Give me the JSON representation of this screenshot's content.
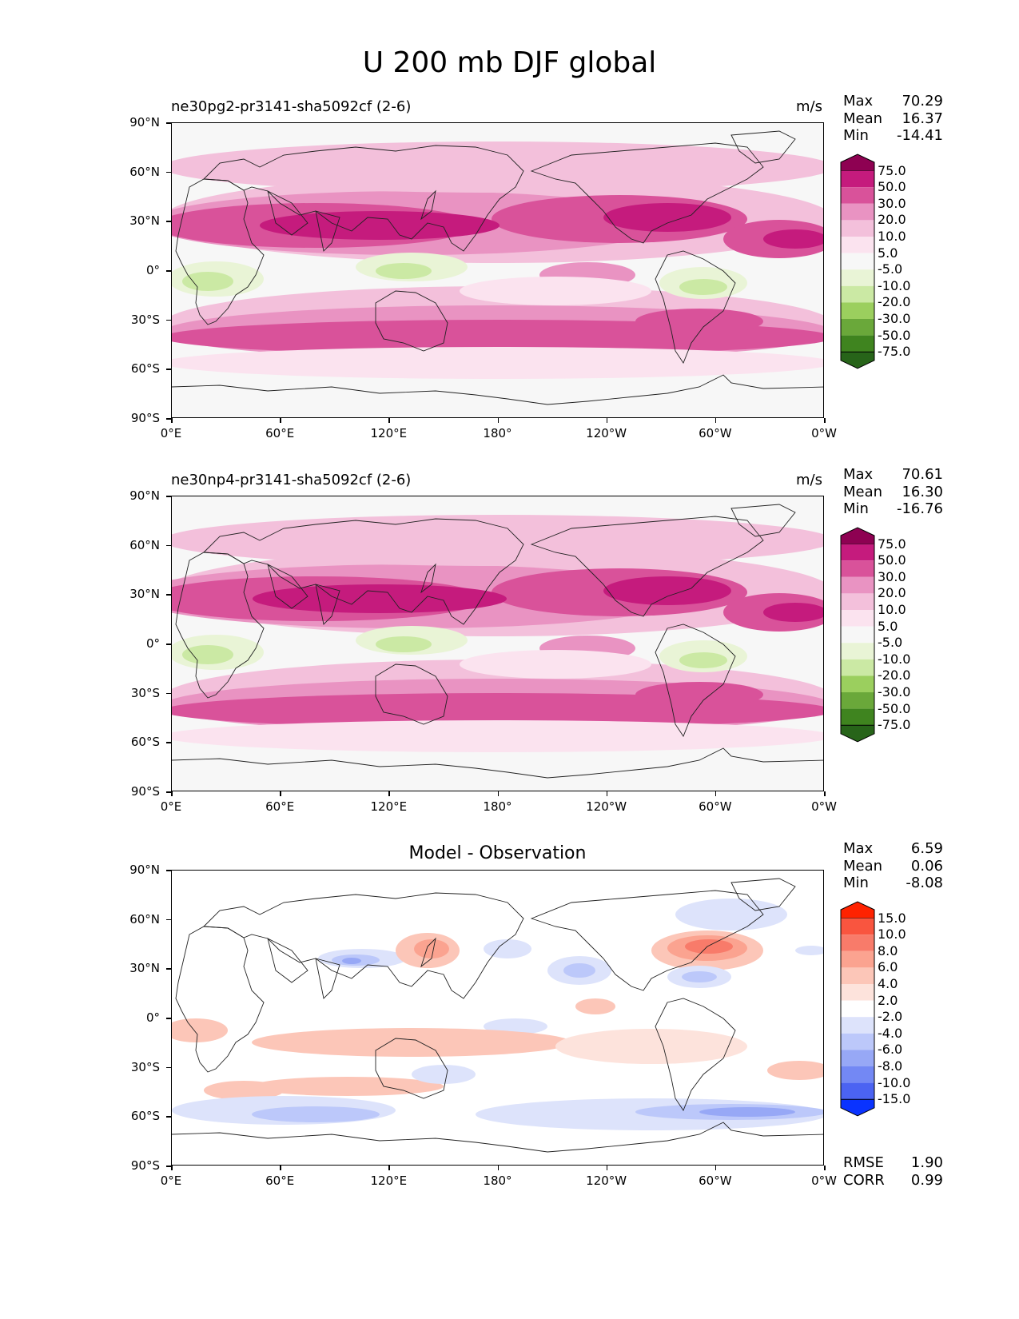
{
  "figure": {
    "title": "U 200 mb DJF global"
  },
  "chart_data": [
    {
      "type": "heatmap",
      "title": "ne30pg2-pr3141-sha5092cf (2-6)",
      "units": "m/s",
      "stats": {
        "max_label": "Max",
        "max": "70.29",
        "mean_label": "Mean",
        "mean": "16.37",
        "min_label": "Min",
        "min": "-14.41"
      },
      "y_ticks": [
        "90°N",
        "60°N",
        "30°N",
        "0°",
        "30°S",
        "60°S",
        "90°S"
      ],
      "x_ticks": [
        "0°E",
        "60°E",
        "120°E",
        "180°",
        "120°W",
        "60°W",
        "0°W"
      ],
      "colorbar_levels": [
        "75.0",
        "50.0",
        "30.0",
        "20.0",
        "10.0",
        "5.0",
        "-5.0",
        "-10.0",
        "-20.0",
        "-30.0",
        "-50.0",
        "-75.0"
      ],
      "colorbar_colors": [
        "#8e0152",
        "#c51b7d",
        "#d9529a",
        "#e993c2",
        "#f3c0db",
        "#fbe3ef",
        "#f7f7f7",
        "#e9f4d6",
        "#cbe9a4",
        "#9bcf5e",
        "#6aa83a",
        "#3f841f",
        "#276419"
      ]
    },
    {
      "type": "heatmap",
      "title": "ne30np4-pr3141-sha5092cf (2-6)",
      "units": "m/s",
      "stats": {
        "max_label": "Max",
        "max": "70.61",
        "mean_label": "Mean",
        "mean": "16.30",
        "min_label": "Min",
        "min": "-16.76"
      },
      "y_ticks": [
        "90°N",
        "60°N",
        "30°N",
        "0°",
        "30°S",
        "60°S",
        "90°S"
      ],
      "x_ticks": [
        "0°E",
        "60°E",
        "120°E",
        "180°",
        "120°W",
        "60°W",
        "0°W"
      ],
      "colorbar_levels": [
        "75.0",
        "50.0",
        "30.0",
        "20.0",
        "10.0",
        "5.0",
        "-5.0",
        "-10.0",
        "-20.0",
        "-30.0",
        "-50.0",
        "-75.0"
      ],
      "colorbar_colors": [
        "#8e0152",
        "#c51b7d",
        "#d9529a",
        "#e993c2",
        "#f3c0db",
        "#fbe3ef",
        "#f7f7f7",
        "#e9f4d6",
        "#cbe9a4",
        "#9bcf5e",
        "#6aa83a",
        "#3f841f",
        "#276419"
      ]
    },
    {
      "type": "heatmap",
      "title": "Model - Observation",
      "units": "",
      "stats": {
        "max_label": "Max",
        "max": "6.59",
        "mean_label": "Mean",
        "mean": "0.06",
        "min_label": "Min",
        "min": "-8.08"
      },
      "extra_stats": {
        "rmse_label": "RMSE",
        "rmse": "1.90",
        "corr_label": "CORR",
        "corr": "0.99"
      },
      "y_ticks": [
        "90°N",
        "60°N",
        "30°N",
        "0°",
        "30°S",
        "60°S",
        "90°S"
      ],
      "x_ticks": [
        "0°E",
        "60°E",
        "120°E",
        "180°",
        "120°W",
        "60°W",
        "0°W"
      ],
      "colorbar_levels": [
        "15.0",
        "10.0",
        "8.0",
        "6.0",
        "4.0",
        "2.0",
        "-2.0",
        "-4.0",
        "-6.0",
        "-8.0",
        "-10.0",
        "-15.0"
      ],
      "colorbar_colors": [
        "#ff2200",
        "#f9553f",
        "#f87b6a",
        "#fba390",
        "#fcc6b8",
        "#fde3dc",
        "#ffffff",
        "#dde3fb",
        "#bcc8fa",
        "#97a8f6",
        "#7388f4",
        "#4b63f2",
        "#0a33ff"
      ]
    }
  ]
}
